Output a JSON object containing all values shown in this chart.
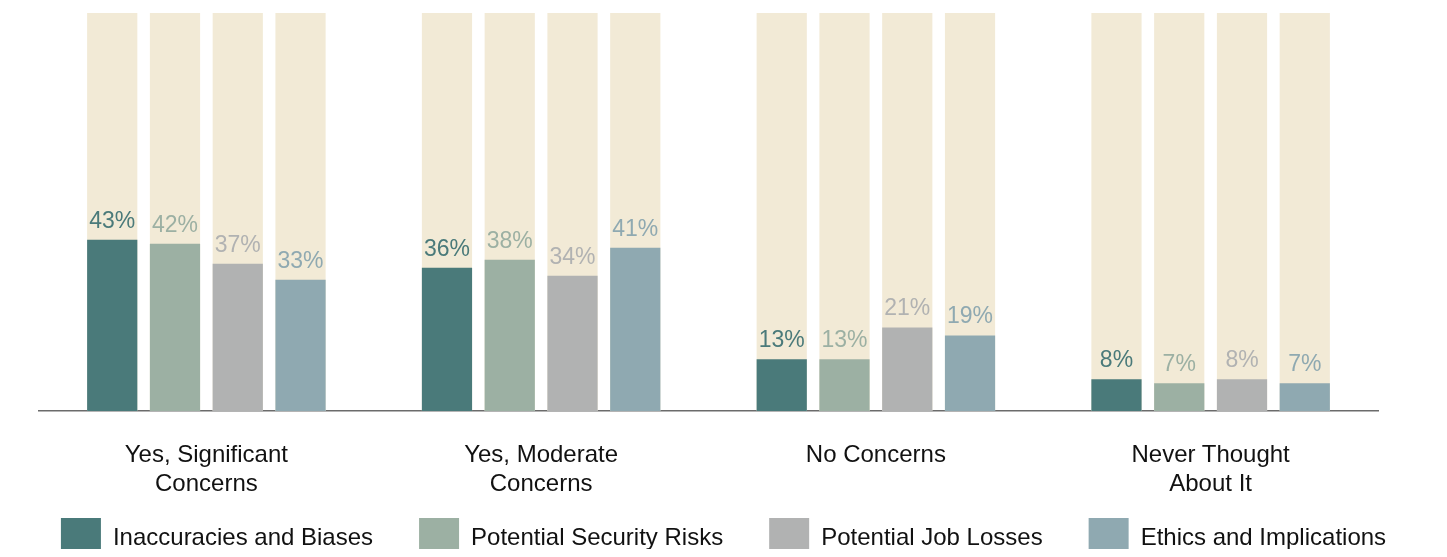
{
  "chart_data": {
    "type": "bar",
    "categories": [
      "Yes, Significant Concerns",
      "Yes, Moderate Concerns",
      "No Concerns",
      "Never Thought About It"
    ],
    "series": [
      {
        "name": "Inaccuracies and Biases",
        "color": "#4a7a7a",
        "values": [
          43,
          36,
          13,
          8
        ],
        "value_labels": [
          "43%",
          "36%",
          "13%",
          "8%"
        ]
      },
      {
        "name": "Potential Security Risks",
        "color": "#9cb0a3",
        "values": [
          42,
          38,
          13,
          7
        ],
        "value_labels": [
          "42%",
          "38%",
          "13%",
          "7%"
        ]
      },
      {
        "name": "Potential Job Losses",
        "color": "#b1b2b2",
        "values": [
          37,
          34,
          21,
          8
        ],
        "value_labels": [
          "37%",
          "34%",
          "21%",
          "8%"
        ]
      },
      {
        "name": "Ethics and Implications",
        "color": "#8fa9b1",
        "values": [
          33,
          41,
          19,
          7
        ],
        "value_labels": [
          "33%",
          "41%",
          "19%",
          "7%"
        ]
      }
    ],
    "ylim": [
      0,
      100
    ],
    "tick_labels": "x",
    "legend": "bottom"
  }
}
